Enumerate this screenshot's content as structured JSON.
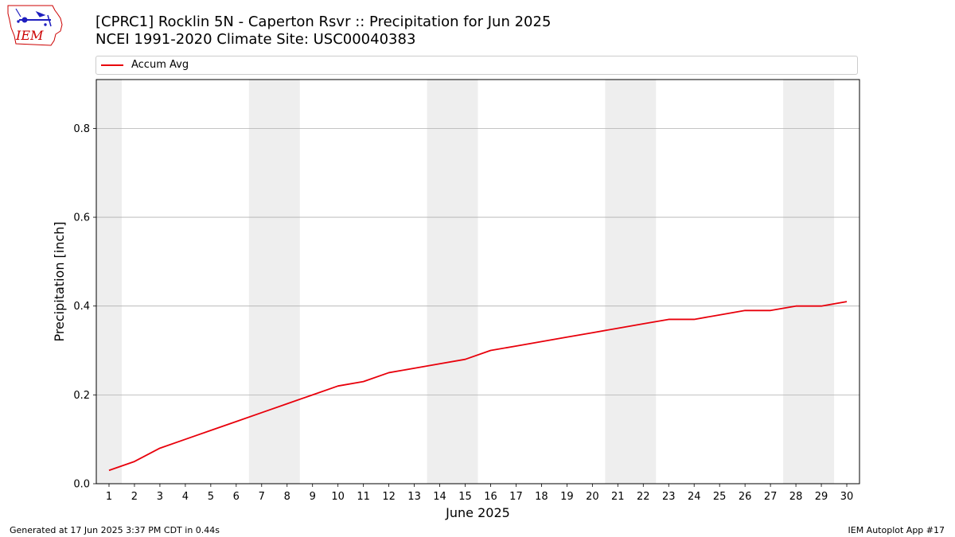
{
  "header": {
    "title": "[CPRC1] Rocklin 5N - Caperton Rsvr :: Precipitation for Jun 2025",
    "subtitle": "NCEI 1991-2020 Climate Site: USC00040383"
  },
  "logo": {
    "text": "IEM",
    "icon": "iem-iowa-logo",
    "colors": {
      "outline": "#cc0000",
      "symbols": "#1f1fbf"
    }
  },
  "legend": {
    "items": [
      {
        "label": "Accum Avg",
        "color": "#e8000b"
      }
    ]
  },
  "footer": {
    "left": "Generated at 17 Jun 2025 3:37 PM CDT in 0.44s",
    "right": "IEM Autoplot App #17"
  },
  "chart_data": {
    "type": "line",
    "xlabel": "June 2025",
    "ylabel": "Precipitation [inch]",
    "x": [
      1,
      2,
      3,
      4,
      5,
      6,
      7,
      8,
      9,
      10,
      11,
      12,
      13,
      14,
      15,
      16,
      17,
      18,
      19,
      20,
      21,
      22,
      23,
      24,
      25,
      26,
      27,
      28,
      29,
      30
    ],
    "xlim": [
      0.5,
      30.5
    ],
    "ylim": [
      0,
      0.91
    ],
    "yticks": [
      0.0,
      0.2,
      0.4,
      0.6,
      0.8
    ],
    "ytick_labels": [
      "0.0",
      "0.2",
      "0.4",
      "0.6",
      "0.8"
    ],
    "grid": "y-major",
    "weekend_shading": [
      [
        0.5,
        1.5
      ],
      [
        6.5,
        8.5
      ],
      [
        13.5,
        15.5
      ],
      [
        20.5,
        22.5
      ],
      [
        27.5,
        29.5
      ]
    ],
    "colors": {
      "weekend": "#eeeeee",
      "grid": "#b0b0b0"
    },
    "legend_position": "top",
    "series": [
      {
        "name": "Accum Avg",
        "color": "#e8000b",
        "values": [
          0.03,
          0.05,
          0.08,
          0.1,
          0.12,
          0.14,
          0.16,
          0.18,
          0.2,
          0.22,
          0.23,
          0.25,
          0.26,
          0.27,
          0.28,
          0.3,
          0.31,
          0.32,
          0.33,
          0.34,
          0.35,
          0.36,
          0.37,
          0.37,
          0.38,
          0.39,
          0.39,
          0.4,
          0.4,
          0.41
        ]
      }
    ]
  }
}
